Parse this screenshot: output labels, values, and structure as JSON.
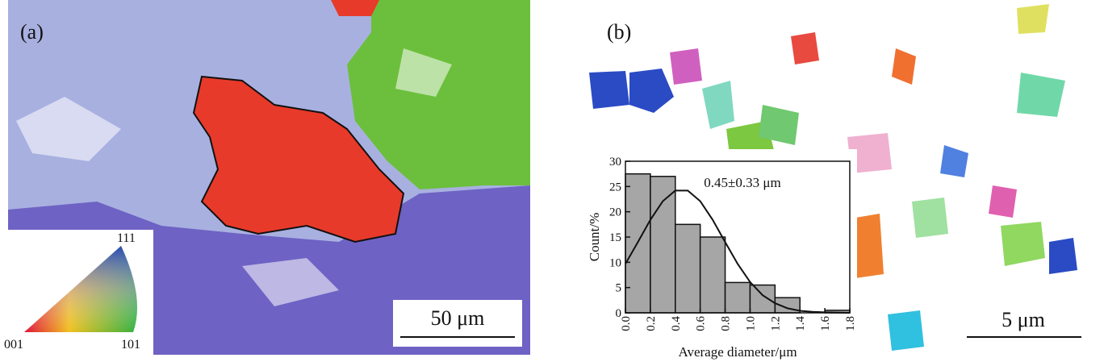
{
  "panels": [
    {
      "label": "(a)",
      "scale_bar": "50 μm",
      "legend_labels": [
        "111",
        "001",
        "101"
      ]
    },
    {
      "label": "(b)",
      "scale_bar": "5 μm"
    }
  ],
  "chart_data": {
    "type": "histogram",
    "annotation": "0.45±0.33 μm",
    "xlabel": "Average diameter/μm",
    "ylabel": "Count/%",
    "bins": [
      0,
      0.2,
      0.4,
      0.6,
      0.8,
      1.0,
      1.2,
      1.4,
      1.6,
      1.8
    ],
    "values": [
      27.5,
      27,
      17.5,
      15,
      6,
      5.5,
      3,
      0,
      0.5
    ],
    "color": "#a6a6a6",
    "fit": {
      "x": [
        0,
        0.1,
        0.2,
        0.3,
        0.4,
        0.5,
        0.6,
        0.7,
        0.8,
        0.9,
        1.0,
        1.1,
        1.2,
        1.3,
        1.4,
        1.5,
        1.6,
        1.8
      ],
      "values": [
        9.7,
        14,
        18.4,
        22.1,
        24.2,
        24.2,
        22.1,
        18.4,
        14,
        9.7,
        6.1,
        3.5,
        1.9,
        0.9,
        0.4,
        0.2,
        0.1,
        0
      ]
    },
    "xlim": [
      0,
      1.8
    ],
    "ylim": [
      0,
      30
    ],
    "xticks": [
      {
        "value": 0,
        "label": "0.0"
      },
      0.2,
      0.4,
      0.6,
      0.8,
      {
        "value": 1,
        "label": "1.0"
      },
      1.2,
      1.4,
      1.6,
      1.8
    ],
    "yticks": [
      0,
      5,
      10,
      15,
      20,
      25,
      30
    ]
  }
}
